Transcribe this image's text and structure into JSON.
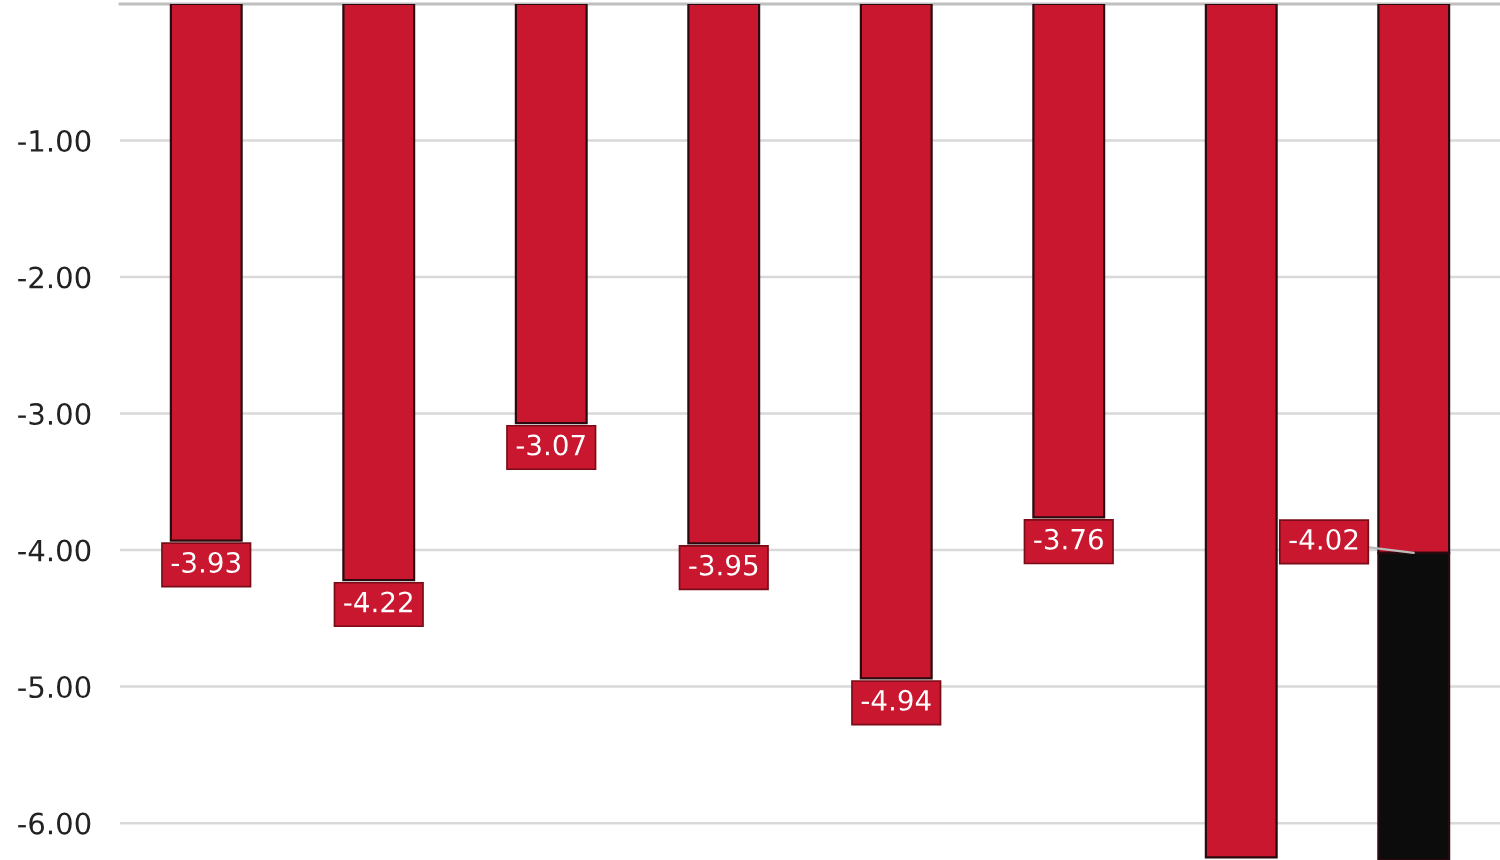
{
  "chart_data": {
    "type": "bar",
    "stacked": true,
    "categories": [
      null,
      null,
      null,
      null,
      null,
      null,
      null,
      null
    ],
    "series": [
      {
        "color": "#c8172f",
        "values": [
          -3.93,
          -4.22,
          -3.07,
          -3.95,
          -4.94,
          -3.76,
          -6.25,
          -4.02
        ],
        "value_labels": [
          "-3.93",
          "-4.22",
          "-3.07",
          "-3.95",
          "-4.94",
          "-3.76",
          null,
          "-4.02"
        ]
      },
      {
        "color": "#0c0c0c",
        "values": [
          null,
          null,
          null,
          null,
          null,
          null,
          null,
          -2.25
        ]
      }
    ],
    "ylim": [
      -6.27,
      0
    ],
    "yticks": [
      {
        "value": -1,
        "label": "-1.00"
      },
      {
        "value": -2,
        "label": "-2.00"
      },
      {
        "value": -3,
        "label": "-3.00"
      },
      {
        "value": -4,
        "label": "-4.00"
      },
      {
        "value": -5,
        "label": "-5.00"
      },
      {
        "value": -6,
        "label": "-6.00"
      }
    ],
    "grid": "y",
    "tick_labels": "y"
  }
}
